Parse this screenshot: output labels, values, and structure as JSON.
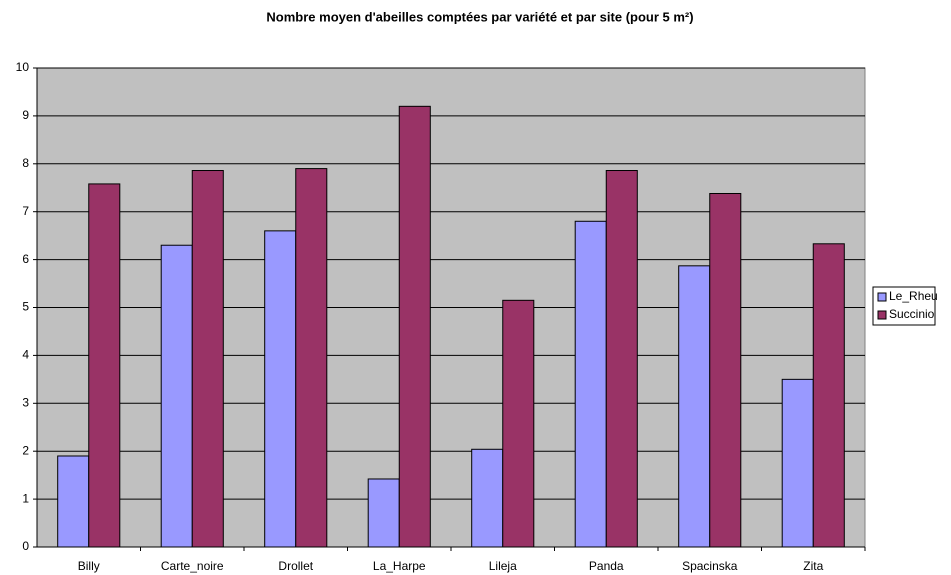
{
  "chart_data": {
    "type": "bar",
    "title": "Nombre moyen d'abeilles comptées par variété et par site (pour 5 m²)",
    "categories": [
      "Billy",
      "Carte_noire",
      "Drollet",
      "La_Harpe",
      "Lileja",
      "Panda",
      "Spacinska",
      "Zita"
    ],
    "series": [
      {
        "name": "Le_Rheu",
        "color": "#9999ff",
        "values": [
          1.9,
          6.3,
          6.6,
          1.42,
          2.04,
          6.8,
          5.87,
          3.5
        ]
      },
      {
        "name": "Succinio",
        "color": "#993366",
        "values": [
          7.58,
          7.86,
          7.9,
          9.2,
          5.15,
          7.86,
          7.38,
          6.33
        ]
      }
    ],
    "ylim": [
      0,
      10
    ],
    "yticks": [
      0,
      1,
      2,
      3,
      4,
      5,
      6,
      7,
      8,
      9,
      10
    ],
    "grid": true,
    "legend": "right"
  }
}
